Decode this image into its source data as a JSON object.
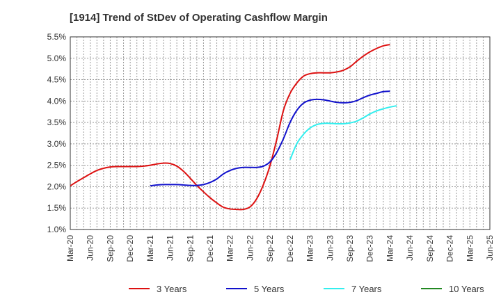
{
  "chart_data": {
    "type": "line",
    "title": "[1914]  Trend of StDev of Operating Cashflow Margin",
    "xlabel": "",
    "ylabel": "",
    "ylim": [
      1.0,
      5.5
    ],
    "y_ticks": [
      "1.0%",
      "1.5%",
      "2.0%",
      "2.5%",
      "3.0%",
      "3.5%",
      "4.0%",
      "4.5%",
      "5.0%",
      "5.5%"
    ],
    "x_ticks": [
      "Mar-20",
      "Jun-20",
      "Sep-20",
      "Dec-20",
      "Mar-21",
      "Jun-21",
      "Sep-21",
      "Dec-21",
      "Mar-22",
      "Jun-22",
      "Sep-22",
      "Dec-22",
      "Mar-23",
      "Jun-23",
      "Sep-23",
      "Dec-23",
      "Mar-24",
      "Jun-24",
      "Sep-24",
      "Dec-24",
      "Mar-25",
      "Jun-25"
    ],
    "grid": true,
    "legend_position": "bottom",
    "series": [
      {
        "name": "3 Years",
        "color": "#dd1111",
        "start_index": 0,
        "values": [
          2.02,
          2.12,
          2.21,
          2.3,
          2.38,
          2.43,
          2.46,
          2.47,
          2.47,
          2.47,
          2.47,
          2.48,
          2.5,
          2.53,
          2.55,
          2.54,
          2.48,
          2.36,
          2.2,
          2.03,
          1.88,
          1.74,
          1.62,
          1.52,
          1.48,
          1.47,
          1.47,
          1.53,
          1.72,
          2.05,
          2.5,
          3.1,
          3.78,
          4.18,
          4.42,
          4.58,
          4.64,
          4.66,
          4.66,
          4.66,
          4.68,
          4.72,
          4.8,
          4.93,
          5.05,
          5.15,
          5.23,
          5.29,
          5.32
        ]
      },
      {
        "name": "5 Years",
        "color": "#1111cc",
        "start_index": 12,
        "values": [
          2.02,
          2.04,
          2.05,
          2.05,
          2.05,
          2.04,
          2.03,
          2.03,
          2.05,
          2.1,
          2.18,
          2.3,
          2.38,
          2.43,
          2.45,
          2.45,
          2.45,
          2.48,
          2.58,
          2.8,
          3.12,
          3.5,
          3.78,
          3.95,
          4.02,
          4.04,
          4.03,
          4.0,
          3.97,
          3.96,
          3.97,
          4.01,
          4.08,
          4.14,
          4.18,
          4.22,
          4.23
        ]
      },
      {
        "name": "7 Years",
        "color": "#33eeee",
        "start_index": 33,
        "values": [
          2.63,
          3.0,
          3.22,
          3.37,
          3.45,
          3.48,
          3.48,
          3.47,
          3.47,
          3.49,
          3.53,
          3.61,
          3.7,
          3.77,
          3.82,
          3.86,
          3.89
        ]
      },
      {
        "name": "10 Years",
        "color": "#228822",
        "start_index": 0,
        "values": []
      }
    ]
  }
}
